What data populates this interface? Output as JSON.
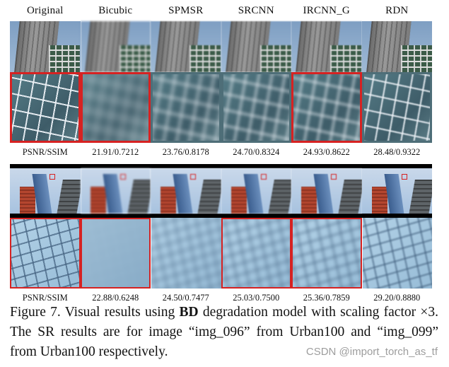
{
  "figure": {
    "column_headers": [
      "Original",
      "Bicubic",
      "SPMSR",
      "SRCNN",
      "IRCNN_G",
      "RDN"
    ],
    "image1": {
      "metric_label": "PSNR/SSIM",
      "metrics": [
        "21.91/0.7212",
        "23.76/0.8178",
        "24.70/0.8324",
        "24.93/0.8622",
        "28.48/0.9322"
      ]
    },
    "image2": {
      "metric_label": "PSNR/SSIM",
      "metrics": [
        "22.88/0.6248",
        "24.50/0.7477",
        "25.03/0.7500",
        "25.36/0.7859",
        "29.20/0.8880"
      ]
    },
    "highlight_color": "#d62222"
  },
  "caption": {
    "prefix": "Figure 7. Visual results using ",
    "bold": "BD",
    "suffix": " degradation model with scaling factor ×3. The SR results are for image “img_096” from Urban100 and “img_099” from Urban100 respectively."
  },
  "watermark": "CSDN @import_torch_as_tf"
}
